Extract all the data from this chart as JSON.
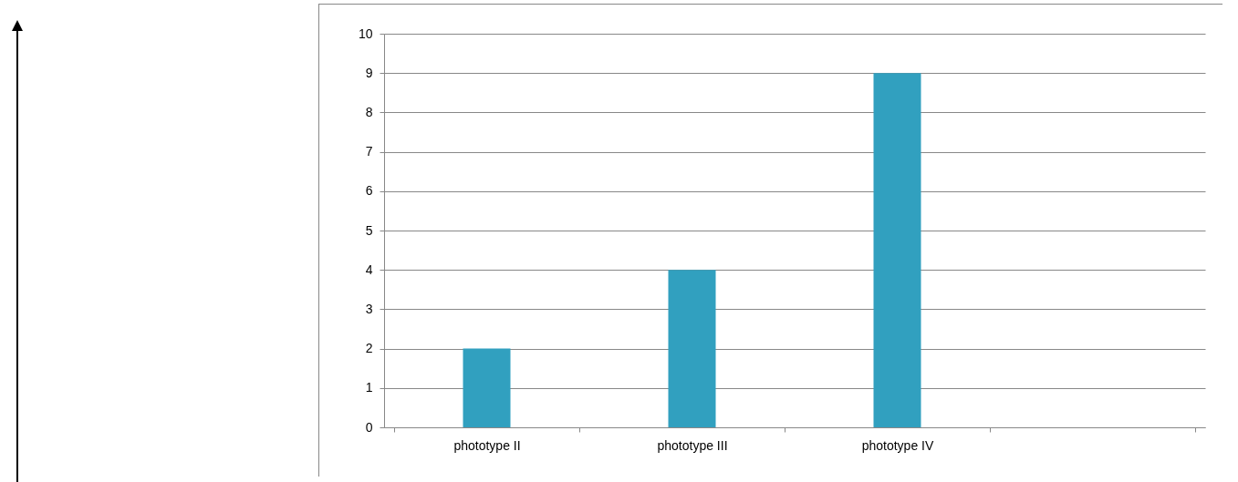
{
  "chart_data": {
    "type": "bar",
    "categories": [
      "phototype II",
      "phototype III",
      "phototype IV",
      null
    ],
    "values": [
      2,
      4,
      9,
      null
    ],
    "color": "#31a0bf",
    "ylim": [
      0,
      10
    ],
    "yticks": [
      0,
      1,
      2,
      3,
      4,
      5,
      6,
      7,
      8,
      9,
      10
    ],
    "grid": "y"
  }
}
